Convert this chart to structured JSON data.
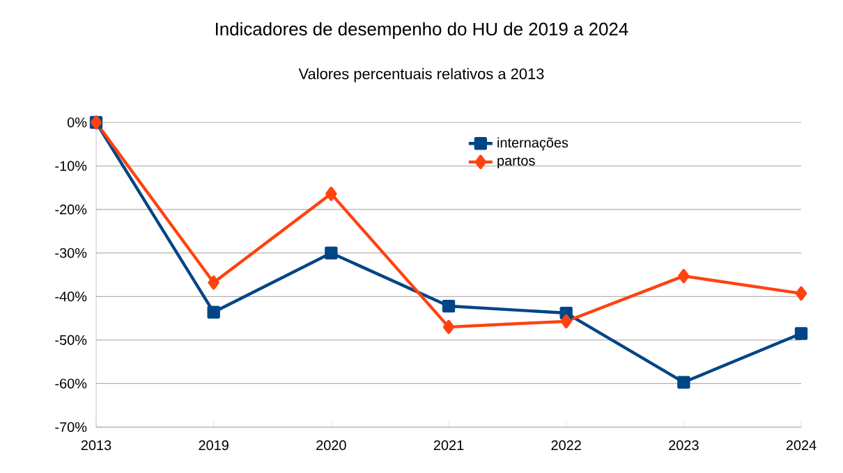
{
  "chart_data": {
    "type": "line",
    "title": "Indicadores de desempenho do HU de 2019 a 2024",
    "subtitle": "Valores percentuais relativos a 2013",
    "categories": [
      "2013",
      "2019",
      "2020",
      "2021",
      "2022",
      "2023",
      "2024"
    ],
    "series": [
      {
        "name": "internações",
        "color": "#004586",
        "marker": "square",
        "values": [
          0,
          -43.6,
          -30.0,
          -42.2,
          -43.8,
          -59.7,
          -48.5
        ]
      },
      {
        "name": "partos",
        "color": "#ff420e",
        "marker": "diamond",
        "values": [
          0,
          -36.8,
          -16.4,
          -47.0,
          -45.7,
          -35.3,
          -39.3
        ]
      }
    ],
    "ylim": [
      -70,
      0
    ],
    "yticks": [
      {
        "value": -70,
        "label": "-70%"
      },
      {
        "value": -60,
        "label": "-60%"
      },
      {
        "value": -50,
        "label": "-50%"
      },
      {
        "value": -40,
        "label": "-40%"
      },
      {
        "value": -30,
        "label": "-30%"
      },
      {
        "value": -20,
        "label": "-20%"
      },
      {
        "value": -10,
        "label": "-10%"
      },
      {
        "value": 0,
        "label": "0%"
      }
    ],
    "grid": "y",
    "legend": "top right",
    "line_style": "solid"
  }
}
